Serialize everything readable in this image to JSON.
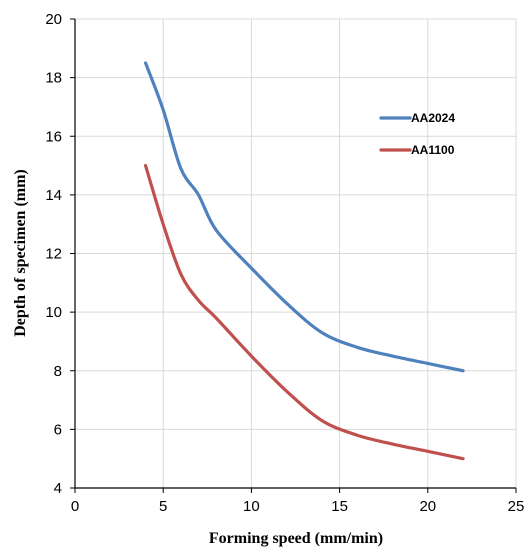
{
  "chart_data": {
    "type": "line",
    "xlabel": "Forming speed (mm/min)",
    "ylabel": "Depth of specimen (mm)",
    "xlim": [
      0,
      25
    ],
    "ylim": [
      4,
      20
    ],
    "xticks": [
      0,
      5,
      10,
      15,
      20,
      25
    ],
    "yticks": [
      4,
      6,
      8,
      10,
      12,
      14,
      16,
      18,
      20
    ],
    "grid": true,
    "legend_position": "right",
    "series": [
      {
        "name": "AA2024",
        "color": "#4F81BD",
        "x": [
          4,
          5,
          6,
          7,
          8,
          10,
          12,
          14,
          16,
          18,
          20,
          22
        ],
        "y": [
          18.5,
          16.9,
          14.9,
          14.0,
          12.8,
          11.5,
          10.3,
          9.3,
          8.8,
          8.5,
          8.25,
          8.0
        ]
      },
      {
        "name": "AA1100",
        "color": "#C0504D",
        "x": [
          4,
          5,
          6,
          7,
          8,
          10,
          12,
          14,
          16,
          18,
          20,
          22
        ],
        "y": [
          15.0,
          13.0,
          11.3,
          10.4,
          9.8,
          8.5,
          7.3,
          6.3,
          5.8,
          5.5,
          5.25,
          5.0
        ]
      }
    ]
  }
}
